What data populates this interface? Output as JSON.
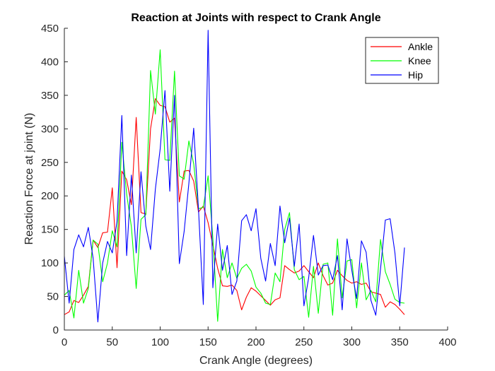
{
  "chart_data": {
    "type": "line",
    "title": "Reaction at Joints with respect to Crank Angle",
    "xlabel": "Crank Angle (degrees)",
    "ylabel": "Reaction Force at joint (N)",
    "xlim": [
      0,
      400
    ],
    "ylim": [
      0,
      450
    ],
    "xticks": [
      "0",
      "50",
      "100",
      "150",
      "200",
      "250",
      "300",
      "350",
      "400"
    ],
    "yticks": [
      "0",
      "50",
      "100",
      "150",
      "200",
      "250",
      "300",
      "350",
      "400",
      "450"
    ],
    "grid": false,
    "legend_position": "top-right",
    "series": [
      {
        "name": "Ankle",
        "color": "#ff0000",
        "x": [
          0,
          5,
          10,
          15,
          20,
          25,
          30,
          35,
          40,
          45,
          50,
          55,
          60,
          65,
          70,
          75,
          80,
          85,
          90,
          95,
          100,
          105,
          110,
          115,
          120,
          125,
          130,
          135,
          140,
          145,
          150,
          155,
          160,
          165,
          170,
          175,
          180,
          185,
          190,
          195,
          200,
          205,
          210,
          215,
          220,
          225,
          230,
          235,
          240,
          245,
          250,
          255,
          260,
          265,
          270,
          275,
          280,
          285,
          290,
          295,
          300,
          305,
          310,
          315,
          320,
          325,
          330,
          335,
          340,
          345,
          350,
          355,
          360
        ],
        "values": [
          23,
          27,
          44,
          41,
          52,
          65,
          134,
          123,
          145,
          146,
          212,
          93,
          237,
          224,
          187,
          317,
          175,
          173,
          300,
          345,
          335,
          333,
          310,
          316,
          191,
          237,
          238,
          222,
          176,
          185,
          160,
          127,
          92,
          66,
          65,
          67,
          59,
          30,
          49,
          63,
          58,
          51,
          44,
          37,
          45,
          48,
          96,
          90,
          85,
          88,
          96,
          87,
          78,
          100,
          81,
          67,
          70,
          89,
          81,
          74,
          70,
          72,
          68,
          70,
          57,
          55,
          53,
          34,
          42,
          38,
          31,
          23,
          0
        ],
        "omit_last": true
      },
      {
        "name": "Knee",
        "color": "#00ff00",
        "x": [
          0,
          5,
          10,
          15,
          20,
          25,
          30,
          35,
          40,
          45,
          50,
          55,
          60,
          65,
          70,
          75,
          80,
          85,
          90,
          95,
          100,
          105,
          110,
          115,
          120,
          125,
          130,
          135,
          140,
          145,
          150,
          155,
          160,
          165,
          170,
          175,
          180,
          185,
          190,
          195,
          200,
          205,
          210,
          215,
          220,
          225,
          230,
          235,
          240,
          245,
          250,
          255,
          260,
          265,
          270,
          275,
          280,
          285,
          290,
          295,
          300,
          305,
          310,
          315,
          320,
          325,
          330,
          335,
          340,
          345,
          350,
          355,
          360
        ],
        "values": [
          52,
          59,
          18,
          89,
          40,
          62,
          134,
          128,
          72,
          100,
          148,
          124,
          280,
          203,
          154,
          62,
          165,
          172,
          387,
          322,
          418,
          254,
          253,
          386,
          230,
          225,
          282,
          248,
          181,
          183,
          230,
          137,
          13,
          120,
          78,
          100,
          77,
          92,
          98,
          88,
          64,
          55,
          40,
          38,
          85,
          72,
          150,
          175,
          90,
          75,
          80,
          19,
          95,
          25,
          98,
          100,
          22,
          136,
          48,
          103,
          105,
          33,
          100,
          45,
          59,
          42,
          135,
          87,
          68,
          46,
          41,
          40,
          0
        ],
        "omit_last": true
      },
      {
        "name": "Hip",
        "color": "#0000ff",
        "x": [
          0,
          5,
          10,
          15,
          20,
          25,
          30,
          35,
          40,
          45,
          50,
          55,
          60,
          65,
          70,
          75,
          80,
          85,
          90,
          95,
          100,
          105,
          110,
          115,
          120,
          125,
          130,
          135,
          140,
          145,
          150,
          155,
          160,
          165,
          170,
          175,
          180,
          185,
          190,
          195,
          200,
          205,
          210,
          215,
          220,
          225,
          230,
          235,
          240,
          245,
          250,
          255,
          260,
          265,
          270,
          275,
          280,
          285,
          290,
          295,
          300,
          305,
          310,
          315,
          320,
          325,
          330,
          335,
          340,
          345,
          350,
          355,
          360
        ],
        "values": [
          110,
          40,
          120,
          142,
          124,
          153,
          107,
          12,
          100,
          132,
          115,
          162,
          320,
          111,
          231,
          115,
          236,
          155,
          120,
          210,
          270,
          357,
          207,
          350,
          99,
          147,
          219,
          301,
          180,
          38,
          447,
          63,
          158,
          89,
          126,
          53,
          73,
          163,
          172,
          148,
          181,
          107,
          73,
          129,
          96,
          185,
          130,
          167,
          95,
          158,
          36,
          78,
          141,
          82,
          96,
          97,
          75,
          111,
          30,
          136,
          89,
          47,
          133,
          116,
          44,
          22,
          91,
          164,
          166,
          115,
          36,
          123,
          0
        ],
        "omit_last": true
      }
    ]
  }
}
